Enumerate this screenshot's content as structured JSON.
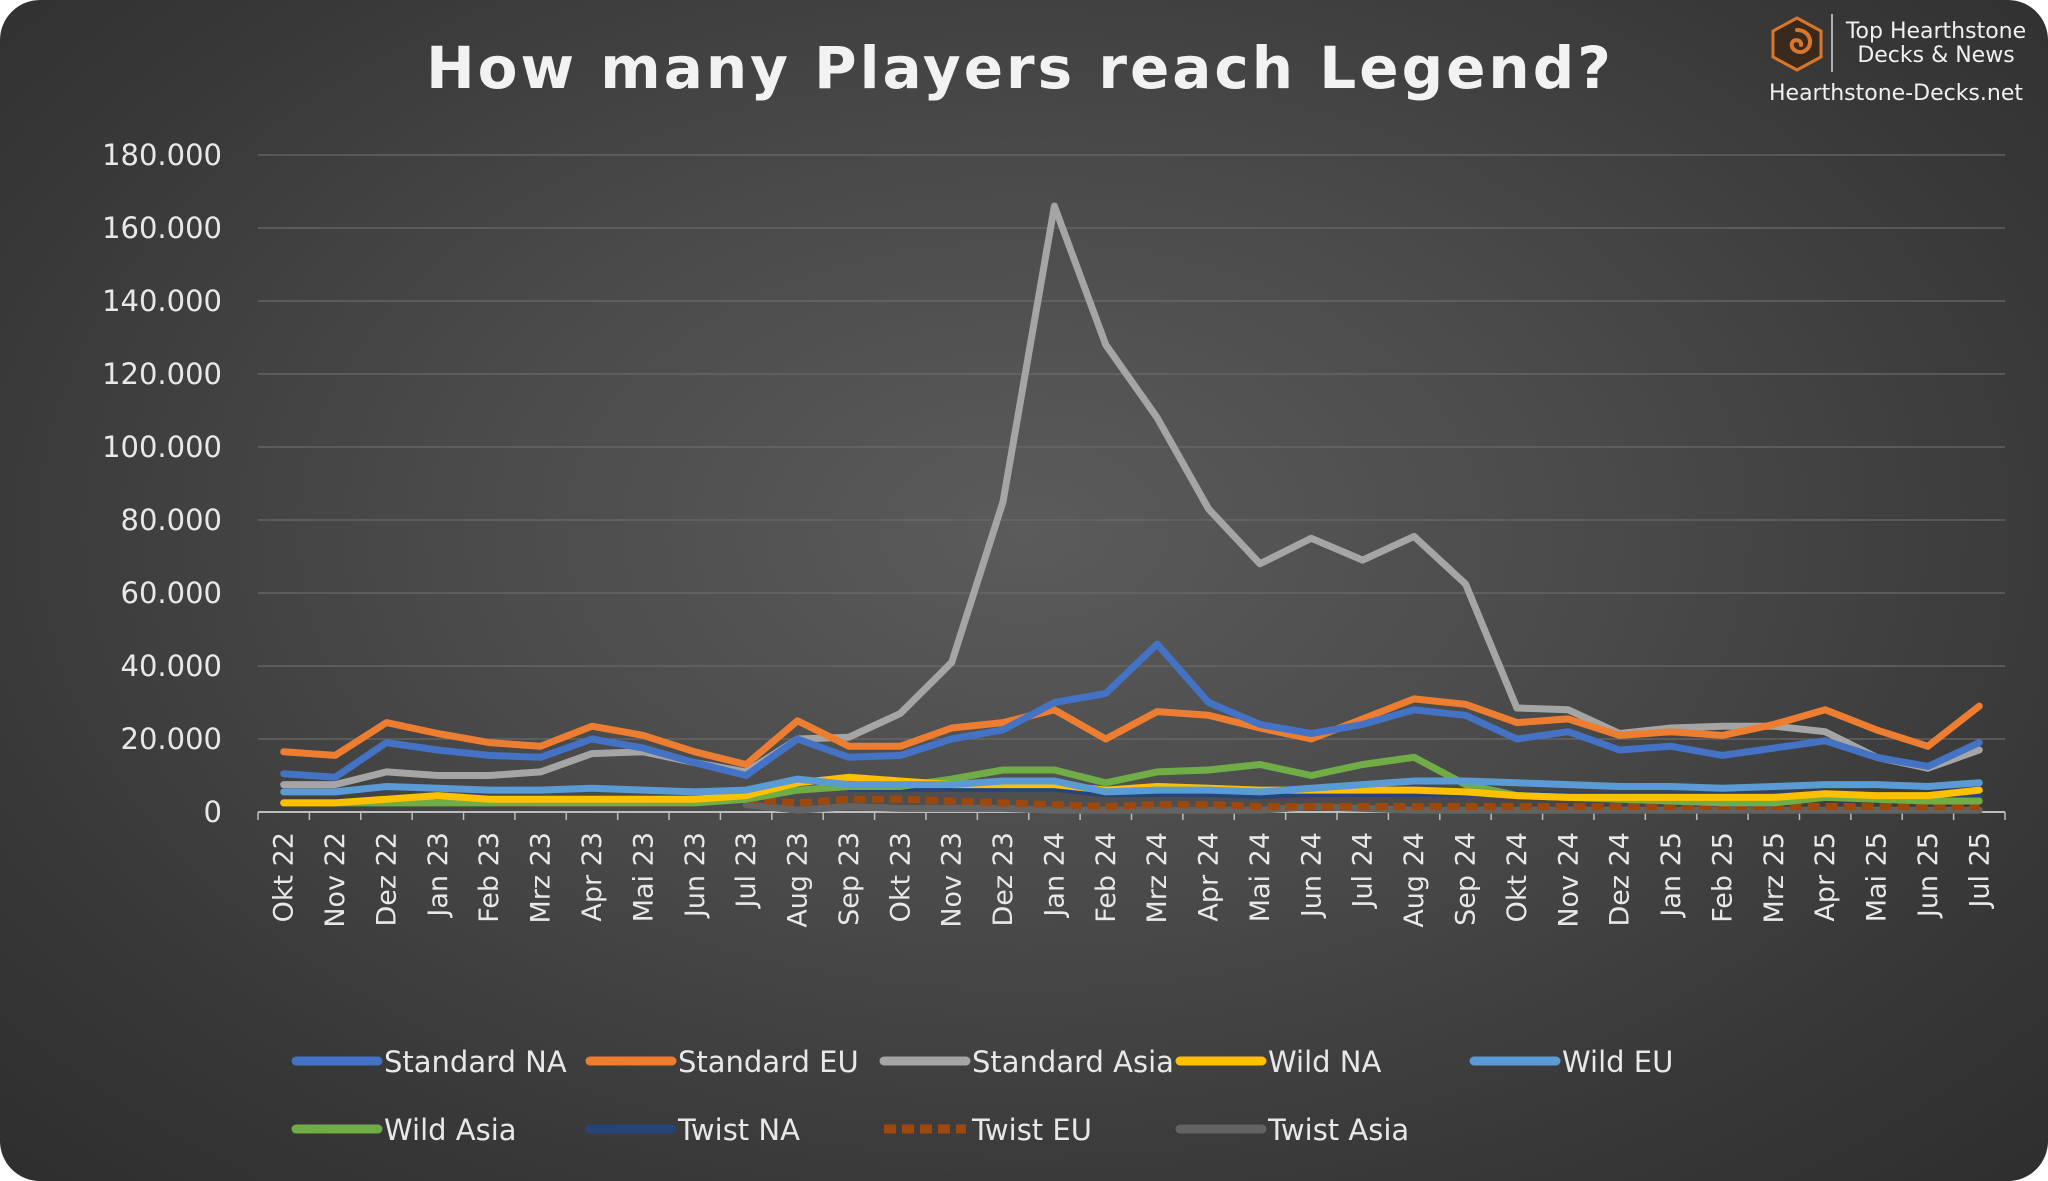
{
  "brand": {
    "line1": "Top Hearthstone",
    "line2": "Decks & News",
    "url": "Hearthstone-Decks.net",
    "accent_color": "#d9762b"
  },
  "chart_data": {
    "type": "line",
    "title": "How many Players reach Legend?",
    "xlabel": "",
    "ylabel": "",
    "ylim": [
      0,
      180000
    ],
    "yticks": [
      0,
      20000,
      40000,
      60000,
      80000,
      100000,
      120000,
      140000,
      160000,
      180000
    ],
    "ytick_labels": [
      "0",
      "20.000",
      "40.000",
      "60.000",
      "80.000",
      "100.000",
      "120.000",
      "140.000",
      "160.000",
      "180.000"
    ],
    "grid": "horizontal",
    "legend_position": "bottom",
    "categories": [
      "Okt 22",
      "Nov 22",
      "Dez 22",
      "Jan 23",
      "Feb 23",
      "Mrz 23",
      "Apr 23",
      "Mai 23",
      "Jun 23",
      "Jul 23",
      "Aug 23",
      "Sep 23",
      "Okt 23",
      "Nov 23",
      "Dez 23",
      "Jan 24",
      "Feb 24",
      "Mrz 24",
      "Apr 24",
      "Mai 24",
      "Jun 24",
      "Jul 24",
      "Aug 24",
      "Sep 24",
      "Okt 24",
      "Nov 24",
      "Dez 24",
      "Jan 25",
      "Feb 25",
      "Mrz 25",
      "Apr 25",
      "Mai 25",
      "Jun 25",
      "Jul 25"
    ],
    "series": [
      {
        "name": "Standard NA",
        "color": "#4472c4",
        "dashed": false,
        "values": [
          10500,
          9500,
          19000,
          17000,
          15500,
          15000,
          20000,
          17500,
          13500,
          10000,
          20000,
          15000,
          15500,
          20000,
          22500,
          30000,
          32500,
          46000,
          30000,
          24000,
          21500,
          24000,
          28000,
          26500,
          20000,
          22000,
          17000,
          18000,
          15500,
          17500,
          19500,
          15000,
          12500,
          19000
        ]
      },
      {
        "name": "Standard EU",
        "color": "#ed7d31",
        "dashed": false,
        "values": [
          16500,
          15500,
          24500,
          21500,
          19000,
          18000,
          23500,
          21000,
          16500,
          13000,
          25000,
          18000,
          18000,
          23000,
          24500,
          28000,
          20000,
          27500,
          26500,
          23000,
          20000,
          25500,
          31000,
          29500,
          24500,
          25500,
          21000,
          22000,
          21000,
          24000,
          28000,
          22500,
          18000,
          29000
        ]
      },
      {
        "name": "Standard Asia",
        "color": "#a5a5a5",
        "dashed": false,
        "values": [
          7500,
          7500,
          11000,
          10000,
          10000,
          11000,
          16000,
          16500,
          13500,
          11000,
          20000,
          20500,
          27000,
          41000,
          85000,
          166000,
          128000,
          108000,
          83000,
          68000,
          75000,
          69000,
          75500,
          62500,
          28500,
          28000,
          21500,
          23000,
          23500,
          23500,
          22000,
          15000,
          12000,
          17000
        ]
      },
      {
        "name": "Wild NA",
        "color": "#ffc000",
        "dashed": false,
        "values": [
          2500,
          2500,
          3500,
          4500,
          3500,
          3500,
          3500,
          3500,
          3500,
          4500,
          8000,
          9500,
          8500,
          7500,
          7500,
          7500,
          6000,
          7000,
          6500,
          6000,
          6000,
          6000,
          6000,
          5500,
          4500,
          4000,
          4000,
          4000,
          4000,
          4000,
          5000,
          4500,
          4500,
          6000
        ]
      },
      {
        "name": "Wild EU",
        "color": "#5b9bd5",
        "dashed": false,
        "values": [
          5500,
          5500,
          7000,
          6500,
          6000,
          6000,
          6500,
          6000,
          5500,
          6000,
          9000,
          7500,
          7500,
          7500,
          8500,
          8500,
          5500,
          6000,
          6000,
          5500,
          6500,
          7500,
          8500,
          8500,
          8000,
          7500,
          7000,
          7000,
          6500,
          7000,
          7500,
          7500,
          7000,
          8000
        ]
      },
      {
        "name": "Wild Asia",
        "color": "#70ad47",
        "dashed": false,
        "values": [
          2500,
          2500,
          2500,
          2500,
          2500,
          2500,
          2500,
          2500,
          2500,
          3500,
          6000,
          7000,
          7000,
          9000,
          11500,
          11500,
          8000,
          11000,
          11500,
          13000,
          10000,
          13000,
          15000,
          7500,
          4500,
          4000,
          3500,
          3000,
          2500,
          2500,
          4000,
          3500,
          3000,
          3000
        ]
      },
      {
        "name": "Twist NA",
        "color": "#264478",
        "dashed": false,
        "values": [
          null,
          null,
          null,
          null,
          null,
          null,
          null,
          null,
          null,
          null,
          null,
          6500,
          6500,
          6500,
          6500,
          6500,
          5000,
          5000,
          5000,
          4500,
          5000,
          5000,
          5000,
          5000,
          5000,
          4500,
          4500,
          4500,
          4500,
          4500,
          4500,
          4500,
          4500,
          4500
        ]
      },
      {
        "name": "Twist EU",
        "color": "#9e480e",
        "dashed": true,
        "values": [
          null,
          null,
          null,
          null,
          null,
          null,
          null,
          null,
          null,
          3500,
          2500,
          3500,
          3500,
          3000,
          2500,
          2000,
          1500,
          2000,
          2000,
          1500,
          1500,
          1500,
          1500,
          1500,
          1500,
          1500,
          1500,
          1500,
          1500,
          1500,
          1500,
          1500,
          1500,
          1500
        ]
      },
      {
        "name": "Twist Asia",
        "color": "#636363",
        "dashed": false,
        "values": [
          null,
          null,
          null,
          null,
          null,
          null,
          null,
          null,
          null,
          2000,
          500,
          1500,
          1000,
          1000,
          1000,
          500,
          500,
          500,
          500,
          500,
          1500,
          1000,
          500,
          500,
          500,
          500,
          500,
          500,
          500,
          500,
          500,
          500,
          500,
          500
        ]
      }
    ]
  }
}
